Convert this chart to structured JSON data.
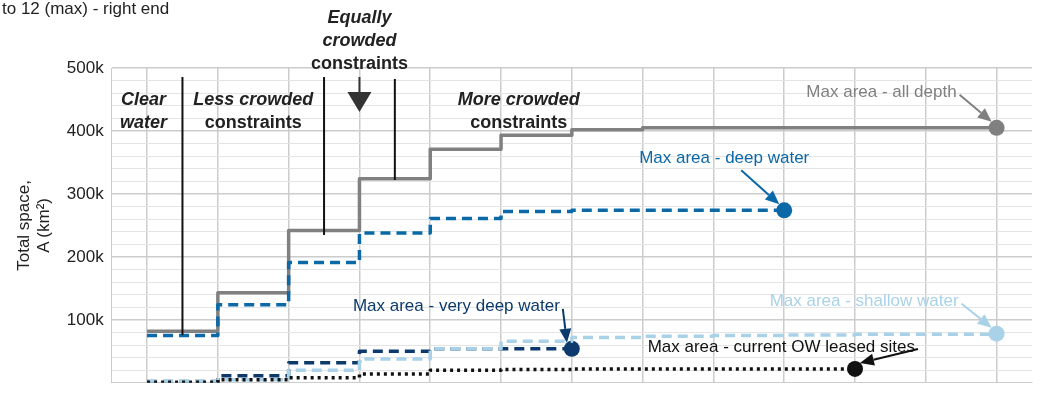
{
  "chart_data": {
    "type": "step",
    "ylabel": "Total space, A (km²)",
    "categories": [
      null,
      null,
      null,
      null,
      null,
      null,
      null,
      null,
      null,
      null,
      null,
      null,
      null
    ],
    "series": [
      {
        "name": "Max area - all depth",
        "color": "#808080",
        "line_style": "solid",
        "values": [
          82000,
          143000,
          242000,
          324000,
          371000,
          393000,
          402000,
          405000,
          405000,
          405000,
          405000,
          405000,
          405000
        ]
      },
      {
        "name": "Max area - deep water",
        "color": "#0b69a8",
        "line_style": "dashed",
        "values": [
          75000,
          124000,
          191000,
          238000,
          261000,
          272000,
          274000,
          274000,
          274000,
          274000,
          null,
          null,
          null
        ]
      },
      {
        "name": "Max area - very deep water",
        "color": "#0d3a6c",
        "line_style": "dashed",
        "values": [
          2000,
          11000,
          32000,
          50000,
          54000,
          54000,
          54000,
          null,
          null,
          null,
          null,
          null,
          null
        ]
      },
      {
        "name": "Max area - shallow water",
        "color": "#a9d2e8",
        "line_style": "dashed",
        "values": [
          2000,
          5000,
          20000,
          38000,
          54000,
          66000,
          72000,
          74000,
          75000,
          76000,
          77000,
          77000,
          78000
        ]
      },
      {
        "name": "Max area - current OW leased sites",
        "color": "#111111",
        "line_style": "dotted",
        "values": [
          1000,
          5000,
          8000,
          14000,
          20000,
          21000,
          22000,
          22000,
          22000,
          22000,
          22000,
          null,
          null
        ]
      }
    ],
    "ylim": [
      0,
      500000
    ],
    "yticks": [
      {
        "value": 0,
        "label": null
      },
      {
        "value": 20000,
        "label": null
      },
      {
        "value": 40000,
        "label": null
      },
      {
        "value": 60000,
        "label": null
      },
      {
        "value": 80000,
        "label": null
      },
      {
        "value": 100000,
        "label": "100k"
      },
      {
        "value": 120000,
        "label": null
      },
      {
        "value": 140000,
        "label": null
      },
      {
        "value": 160000,
        "label": null
      },
      {
        "value": 180000,
        "label": null
      },
      {
        "value": 200000,
        "label": "200k"
      },
      {
        "value": 220000,
        "label": null
      },
      {
        "value": 240000,
        "label": null
      },
      {
        "value": 260000,
        "label": null
      },
      {
        "value": 280000,
        "label": null
      },
      {
        "value": 300000,
        "label": "300k"
      },
      {
        "value": 320000,
        "label": null
      },
      {
        "value": 340000,
        "label": null
      },
      {
        "value": 360000,
        "label": null
      },
      {
        "value": 380000,
        "label": null
      },
      {
        "value": 400000,
        "label": "400k"
      },
      {
        "value": 420000,
        "label": null
      },
      {
        "value": 440000,
        "label": null
      },
      {
        "value": 460000,
        "label": null
      },
      {
        "value": 480000,
        "label": null
      },
      {
        "value": 500000,
        "label": "500k"
      }
    ],
    "grid": true,
    "legend": "right",
    "annotations": [
      "to 12 (max) - right end",
      "Clear water",
      "Less crowded constraints",
      "Equally crowded constraints",
      "More crowded constraints"
    ]
  }
}
